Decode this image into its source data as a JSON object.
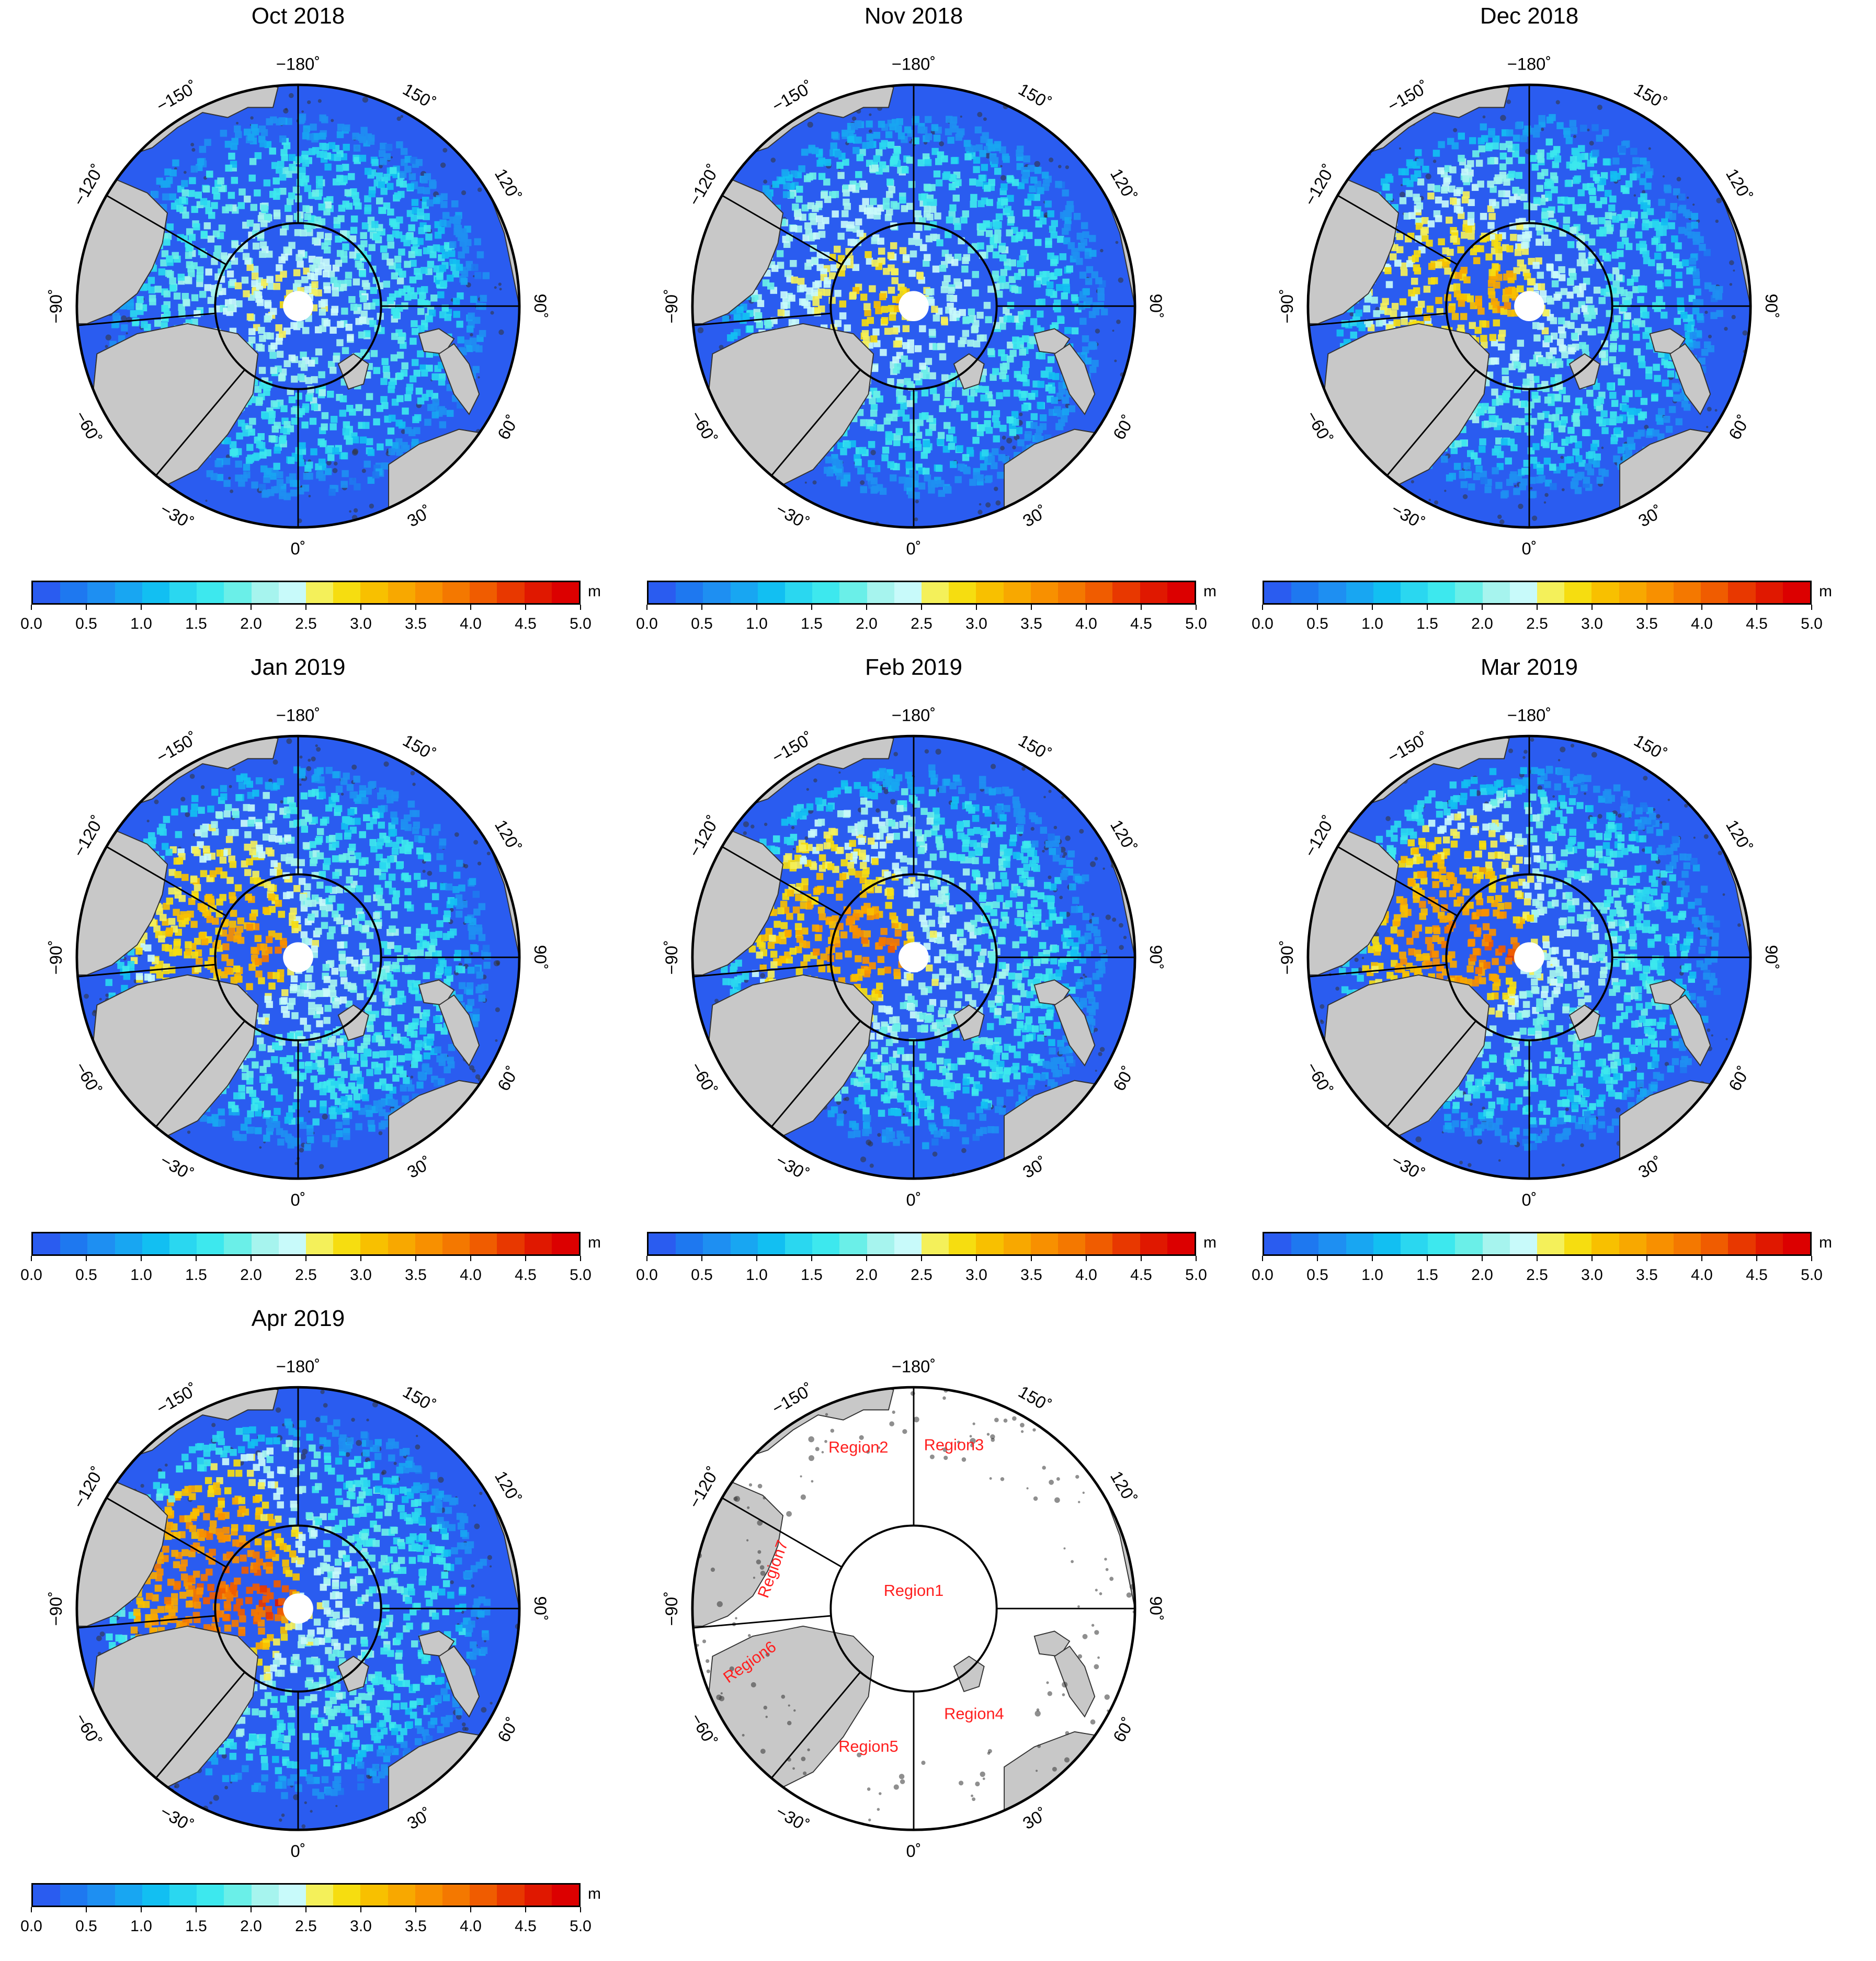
{
  "figure": {
    "panels": [
      {
        "title": "Oct 2018",
        "thick": 0.1
      },
      {
        "title": "Nov 2018",
        "thick": 0.3
      },
      {
        "title": "Dec 2018",
        "thick": 0.45
      },
      {
        "title": "Jan 2019",
        "thick": 0.55
      },
      {
        "title": "Feb 2019",
        "thick": 0.62
      },
      {
        "title": "Mar 2019",
        "thick": 0.72
      },
      {
        "title": "Apr 2019",
        "thick": 0.85
      }
    ],
    "lon_labels": [
      "−180˚",
      "150˚",
      "120˚",
      "90˚",
      "60˚",
      "30˚",
      "0˚",
      "−30˚",
      "−60˚",
      "−90˚",
      "−120˚",
      "−150˚"
    ],
    "region_labels": [
      "Region1",
      "Region2",
      "Region3",
      "Region4",
      "Region5",
      "Region6",
      "Region7"
    ],
    "colorbar": {
      "unit": "m",
      "ticks": [
        "0.0",
        "0.5",
        "1.0",
        "1.5",
        "2.0",
        "2.5",
        "3.0",
        "3.5",
        "4.0",
        "4.5",
        "5.0"
      ],
      "colors": [
        "#2a5cf0",
        "#1e78f0",
        "#1e8ff2",
        "#18a6f2",
        "#12bff2",
        "#2ad7f0",
        "#3de8ee",
        "#6aefe8",
        "#a6f4ee",
        "#c8fafa",
        "#f4f05a",
        "#f6dd10",
        "#f8c000",
        "#f8a800",
        "#f89000",
        "#f47800",
        "#f05c00",
        "#e83800",
        "#e01800",
        "#dc0000"
      ]
    },
    "colors": {
      "ocean": "#2a5cf0",
      "land": "#c8c8c8",
      "region_text": "#ff2020",
      "outline": "#000000"
    }
  }
}
